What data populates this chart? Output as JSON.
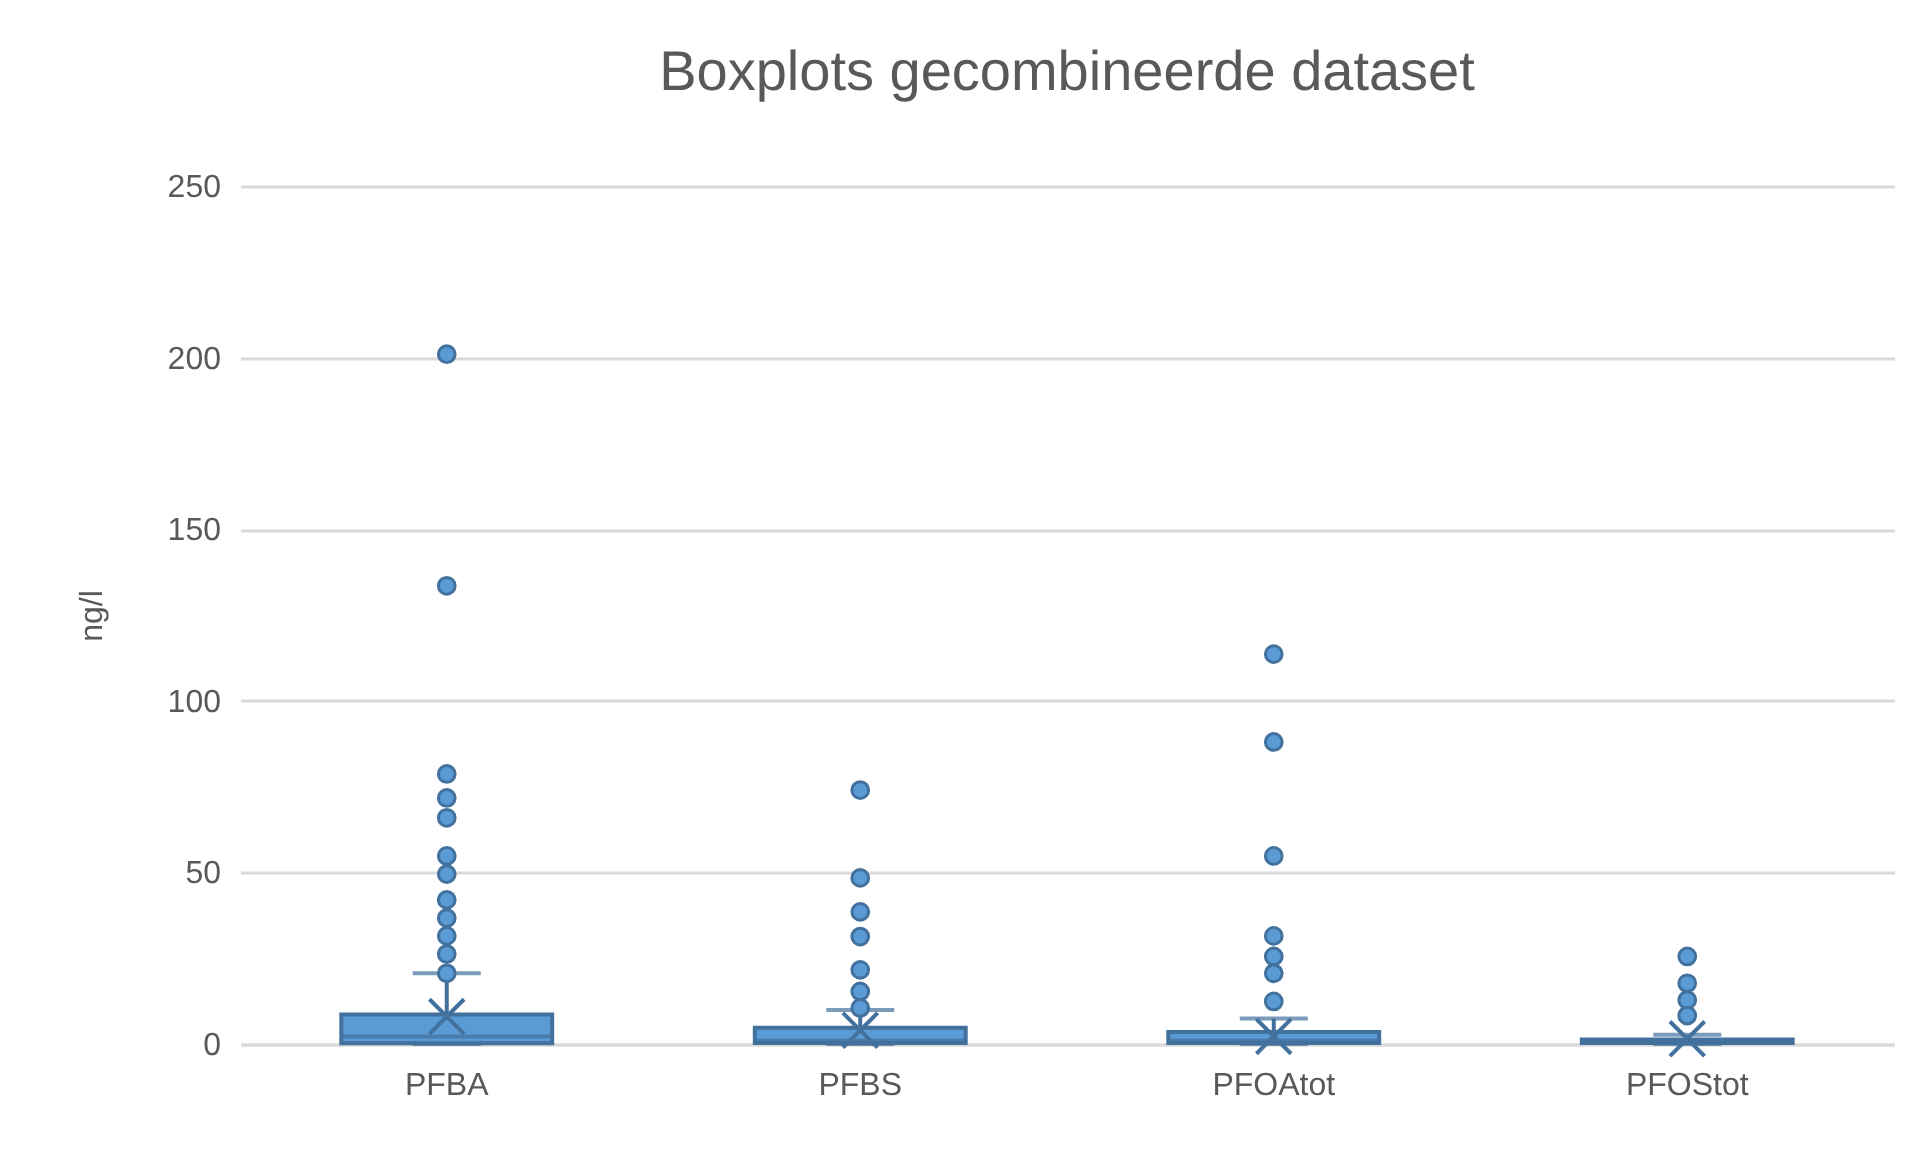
{
  "chart_data": {
    "type": "box",
    "title": "Boxplots gecombineerde dataset",
    "ylabel": "ng/l",
    "categories": [
      "PFBA",
      "PFBS",
      "PFOAtot",
      "PFOStot"
    ],
    "color": "#5b9bd5",
    "boxes": [
      {
        "low": 0,
        "q1": 0.2,
        "median": 2.2,
        "q3": 8.6,
        "high": 20.6,
        "mean": 8,
        "outliers": [
          201,
          133.5,
          78.7,
          71.7,
          65.9,
          54.8,
          49.5,
          42,
          36.7,
          31.5,
          26.2,
          20.6
        ]
      },
      {
        "low": 0,
        "q1": 0.3,
        "median": 1,
        "q3": 4.7,
        "high": 9.9,
        "mean": 4,
        "outliers": [
          74,
          48.4,
          38.5,
          31.3,
          21.6,
          15.3,
          10.5
        ]
      },
      {
        "low": 0,
        "q1": 0.3,
        "median": 1,
        "q3": 3.5,
        "high": 7.4,
        "mean": 2.2,
        "outliers": [
          113.6,
          88,
          54.8,
          31.5,
          25.5,
          20.6,
          12.4
        ]
      },
      {
        "low": 0,
        "q1": 0.3,
        "median": 0.6,
        "q3": 1.3,
        "high": 2.7,
        "mean": 1.5,
        "outliers": [
          25.5,
          17.7,
          12.8,
          8.3
        ]
      }
    ],
    "ylim": [
      0,
      250
    ],
    "yticks": [
      0,
      50,
      100,
      150,
      200,
      250
    ],
    "grid": "y"
  }
}
